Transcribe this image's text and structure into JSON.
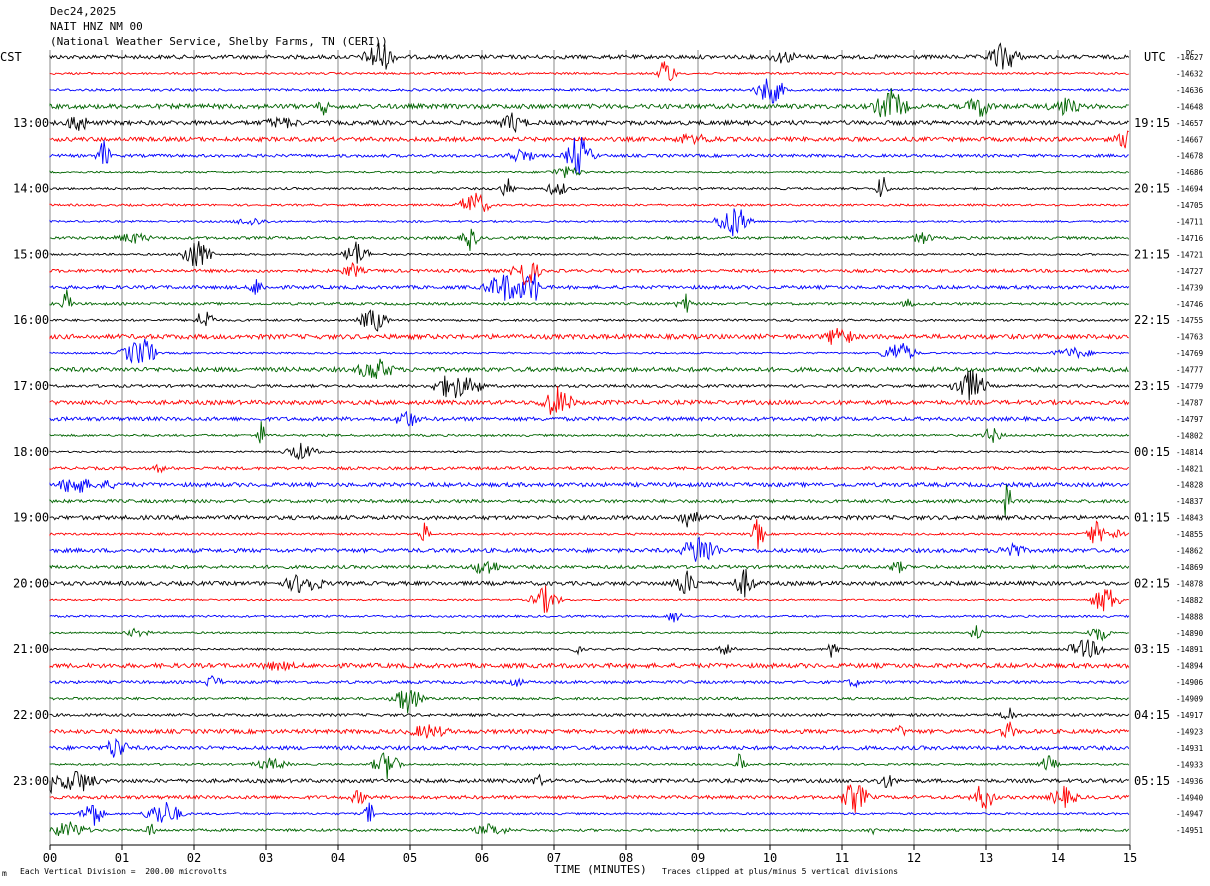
{
  "header": {
    "date": "Dec24,2025",
    "station": "NAIT HNZ NM 00",
    "location": "(National Weather Service, Shelby Farms, TN (CERI))"
  },
  "left_tz": "CST",
  "right_tz": "UTC",
  "dc_label": "DC",
  "footer": {
    "scale": "Each Vertical Division =  200.00 microvolts",
    "clip_note": "Traces clipped at plus/minus 5 vertical divisions",
    "logo": "m"
  },
  "chart_data": {
    "type": "line",
    "title": "",
    "xlabel": "TIME (MINUTES)",
    "ylabel": "",
    "x_ticks": [
      "00",
      "01",
      "02",
      "03",
      "04",
      "05",
      "06",
      "07",
      "08",
      "09",
      "10",
      "11",
      "12",
      "13",
      "14",
      "15"
    ],
    "xlim": [
      0,
      15
    ],
    "grid": true,
    "trace_minutes_per_line": 15,
    "trace_colors": [
      "#000000",
      "#ff0000",
      "#0000ff",
      "#006400"
    ],
    "left_hour_labels": [
      "13:00",
      "14:00",
      "15:00",
      "16:00",
      "17:00",
      "18:00",
      "19:00",
      "20:00",
      "21:00",
      "22:00",
      "23:00"
    ],
    "right_hour_labels": [
      "19:15",
      "20:15",
      "21:15",
      "22:15",
      "23:15",
      "00:15",
      "01:15",
      "02:15",
      "03:15",
      "04:15",
      "05:15"
    ],
    "dc_offsets": [
      "-14627",
      "-14632",
      "-14636",
      "-14648",
      "-14657",
      "-14667",
      "-14678",
      "-14686",
      "-14694",
      "-14705",
      "-14711",
      "-14716",
      "-14721",
      "-14727",
      "-14739",
      "-14746",
      "-14755",
      "-14763",
      "-14769",
      "-14777",
      "-14779",
      "-14787",
      "-14797",
      "-14802",
      "-14814",
      "-14821",
      "-14828",
      "-14837",
      "-14843",
      "-14855",
      "-14862",
      "-14869",
      "-14878",
      "-14882",
      "-14888",
      "-14890",
      "-14891",
      "-14894",
      "-14906",
      "-14909",
      "-14917",
      "-14923",
      "-14931",
      "-14933",
      "-14936",
      "-14940",
      "-14947",
      "-14951"
    ]
  }
}
